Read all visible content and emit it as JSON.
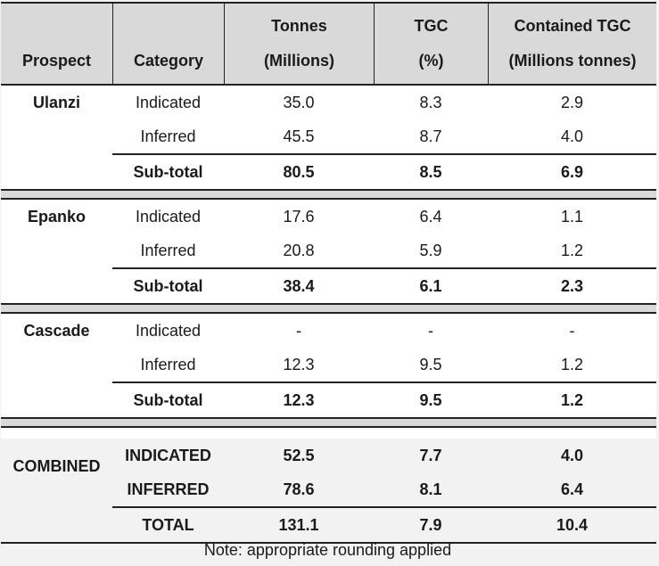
{
  "headers": {
    "prospect": "Prospect",
    "category": "Category",
    "tonnes_line1": "Tonnes",
    "tonnes_line2": "(Millions)",
    "tgc_line1": "TGC",
    "tgc_line2": "(%)",
    "contained_line1": "Contained TGC",
    "contained_line2": "(Millions tonnes)"
  },
  "sections": [
    {
      "prospect": "Ulanzi",
      "rows": [
        {
          "category": "Indicated",
          "tonnes": "35.0",
          "tgc": "8.3",
          "contained": "2.9"
        },
        {
          "category": "Inferred",
          "tonnes": "45.5",
          "tgc": "8.7",
          "contained": "4.0"
        }
      ],
      "subtotal": {
        "category": "Sub-total",
        "tonnes": "80.5",
        "tgc": "8.5",
        "contained": "6.9"
      }
    },
    {
      "prospect": "Epanko",
      "rows": [
        {
          "category": "Indicated",
          "tonnes": "17.6",
          "tgc": "6.4",
          "contained": "1.1"
        },
        {
          "category": "Inferred",
          "tonnes": "20.8",
          "tgc": "5.9",
          "contained": "1.2"
        }
      ],
      "subtotal": {
        "category": "Sub-total",
        "tonnes": "38.4",
        "tgc": "6.1",
        "contained": "2.3"
      }
    },
    {
      "prospect": "Cascade",
      "rows": [
        {
          "category": "Indicated",
          "tonnes": "-",
          "tgc": "-",
          "contained": "-"
        },
        {
          "category": "Inferred",
          "tonnes": "12.3",
          "tgc": "9.5",
          "contained": "1.2"
        }
      ],
      "subtotal": {
        "category": "Sub-total",
        "tonnes": "12.3",
        "tgc": "9.5",
        "contained": "1.2"
      }
    }
  ],
  "combined": {
    "prospect": "COMBINED",
    "rows": [
      {
        "category": "INDICATED",
        "tonnes": "52.5",
        "tgc": "7.7",
        "contained": "4.0"
      },
      {
        "category": "INFERRED",
        "tonnes": "78.6",
        "tgc": "8.1",
        "contained": "6.4"
      }
    ],
    "total": {
      "category": "TOTAL",
      "tonnes": "131.1",
      "tgc": "7.9",
      "contained": "10.4"
    }
  },
  "note": "Note: appropriate rounding applied"
}
